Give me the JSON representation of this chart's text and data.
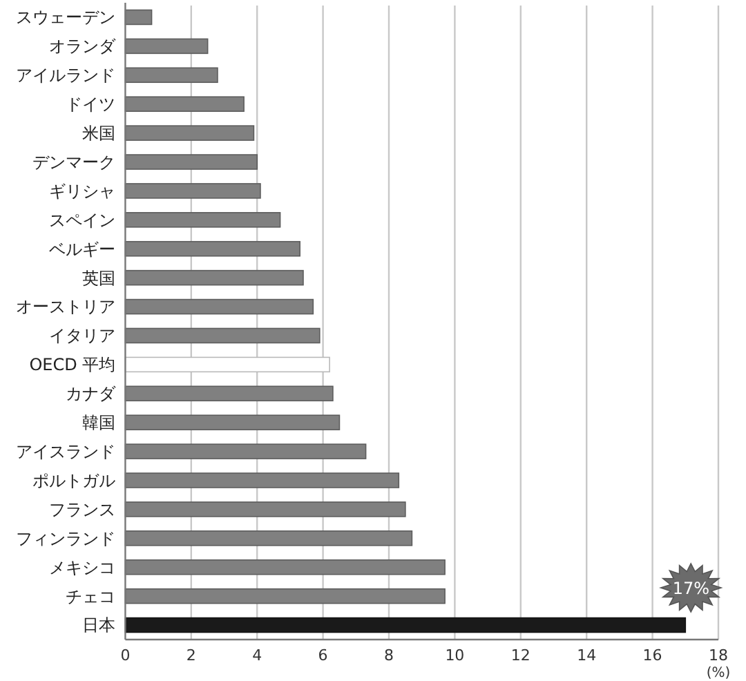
{
  "chart_data": {
    "type": "bar",
    "orientation": "horizontal",
    "categories": [
      "スウェーデン",
      "オランダ",
      "アイルランド",
      "ドイツ",
      "米国",
      "デンマーク",
      "ギリシャ",
      "スペイン",
      "ベルギー",
      "英国",
      "オーストリア",
      "イタリア",
      "OECD 平均",
      "カナダ",
      "韓国",
      "アイスランド",
      "ポルトガル",
      "フランス",
      "フィンランド",
      "メキシコ",
      "チェコ",
      "日本"
    ],
    "values": [
      0.8,
      2.5,
      2.8,
      3.6,
      3.9,
      4.0,
      4.1,
      4.7,
      5.3,
      5.4,
      5.7,
      5.9,
      6.2,
      6.3,
      6.5,
      7.3,
      8.3,
      8.5,
      8.7,
      9.7,
      9.7,
      17.0
    ],
    "colors": [
      "#808080",
      "#808080",
      "#808080",
      "#808080",
      "#808080",
      "#808080",
      "#808080",
      "#808080",
      "#808080",
      "#808080",
      "#808080",
      "#808080",
      "#ffffff",
      "#808080",
      "#808080",
      "#808080",
      "#808080",
      "#808080",
      "#808080",
      "#808080",
      "#808080",
      "#1a1a1a"
    ],
    "xlim": [
      0,
      18
    ],
    "xticks": [
      0,
      2,
      4,
      6,
      8,
      10,
      12,
      14,
      16,
      18
    ],
    "xlabel": "(%)",
    "grid": "x",
    "annotations": [
      {
        "text": "17%",
        "x": 17,
        "y": "日本"
      }
    ]
  }
}
